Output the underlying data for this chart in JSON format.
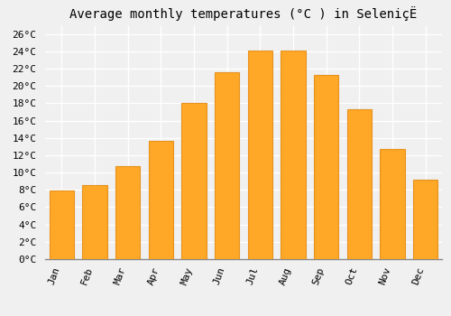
{
  "title": "Average monthly temperatures (°C ) in SeleniçË",
  "months": [
    "Jan",
    "Feb",
    "Mar",
    "Apr",
    "May",
    "Jun",
    "Jul",
    "Aug",
    "Sep",
    "Oct",
    "Nov",
    "Dec"
  ],
  "values": [
    7.9,
    8.6,
    10.7,
    13.7,
    18.0,
    21.6,
    24.1,
    24.1,
    21.3,
    17.3,
    12.7,
    9.2
  ],
  "bar_color": "#FFA726",
  "bar_edge_color": "#E69320",
  "ylim": [
    0,
    27
  ],
  "ytick_step": 2,
  "background_color": "#f0f0f0",
  "grid_color": "#ffffff",
  "title_fontsize": 10,
  "tick_fontsize": 8,
  "font_family": "monospace"
}
